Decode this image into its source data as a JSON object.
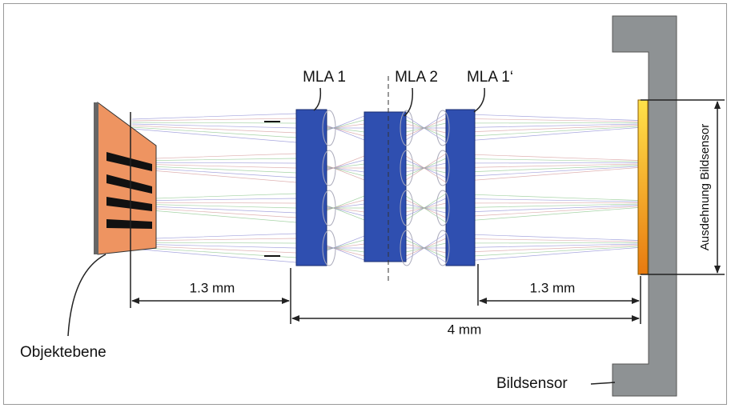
{
  "labels": {
    "mla1": "MLA 1",
    "mla2": "MLA 2",
    "mla1_prime": "MLA 1‘",
    "object_plane": "Objektebene",
    "image_sensor": "Bildsensor",
    "sensor_extent": "Ausdehnung Bildsensor"
  },
  "dimensions": {
    "object_to_mla1": "1.3 mm",
    "mla1prime_to_sensor": "1.3 mm",
    "mla1_to_sensor": "4 mm"
  }
}
